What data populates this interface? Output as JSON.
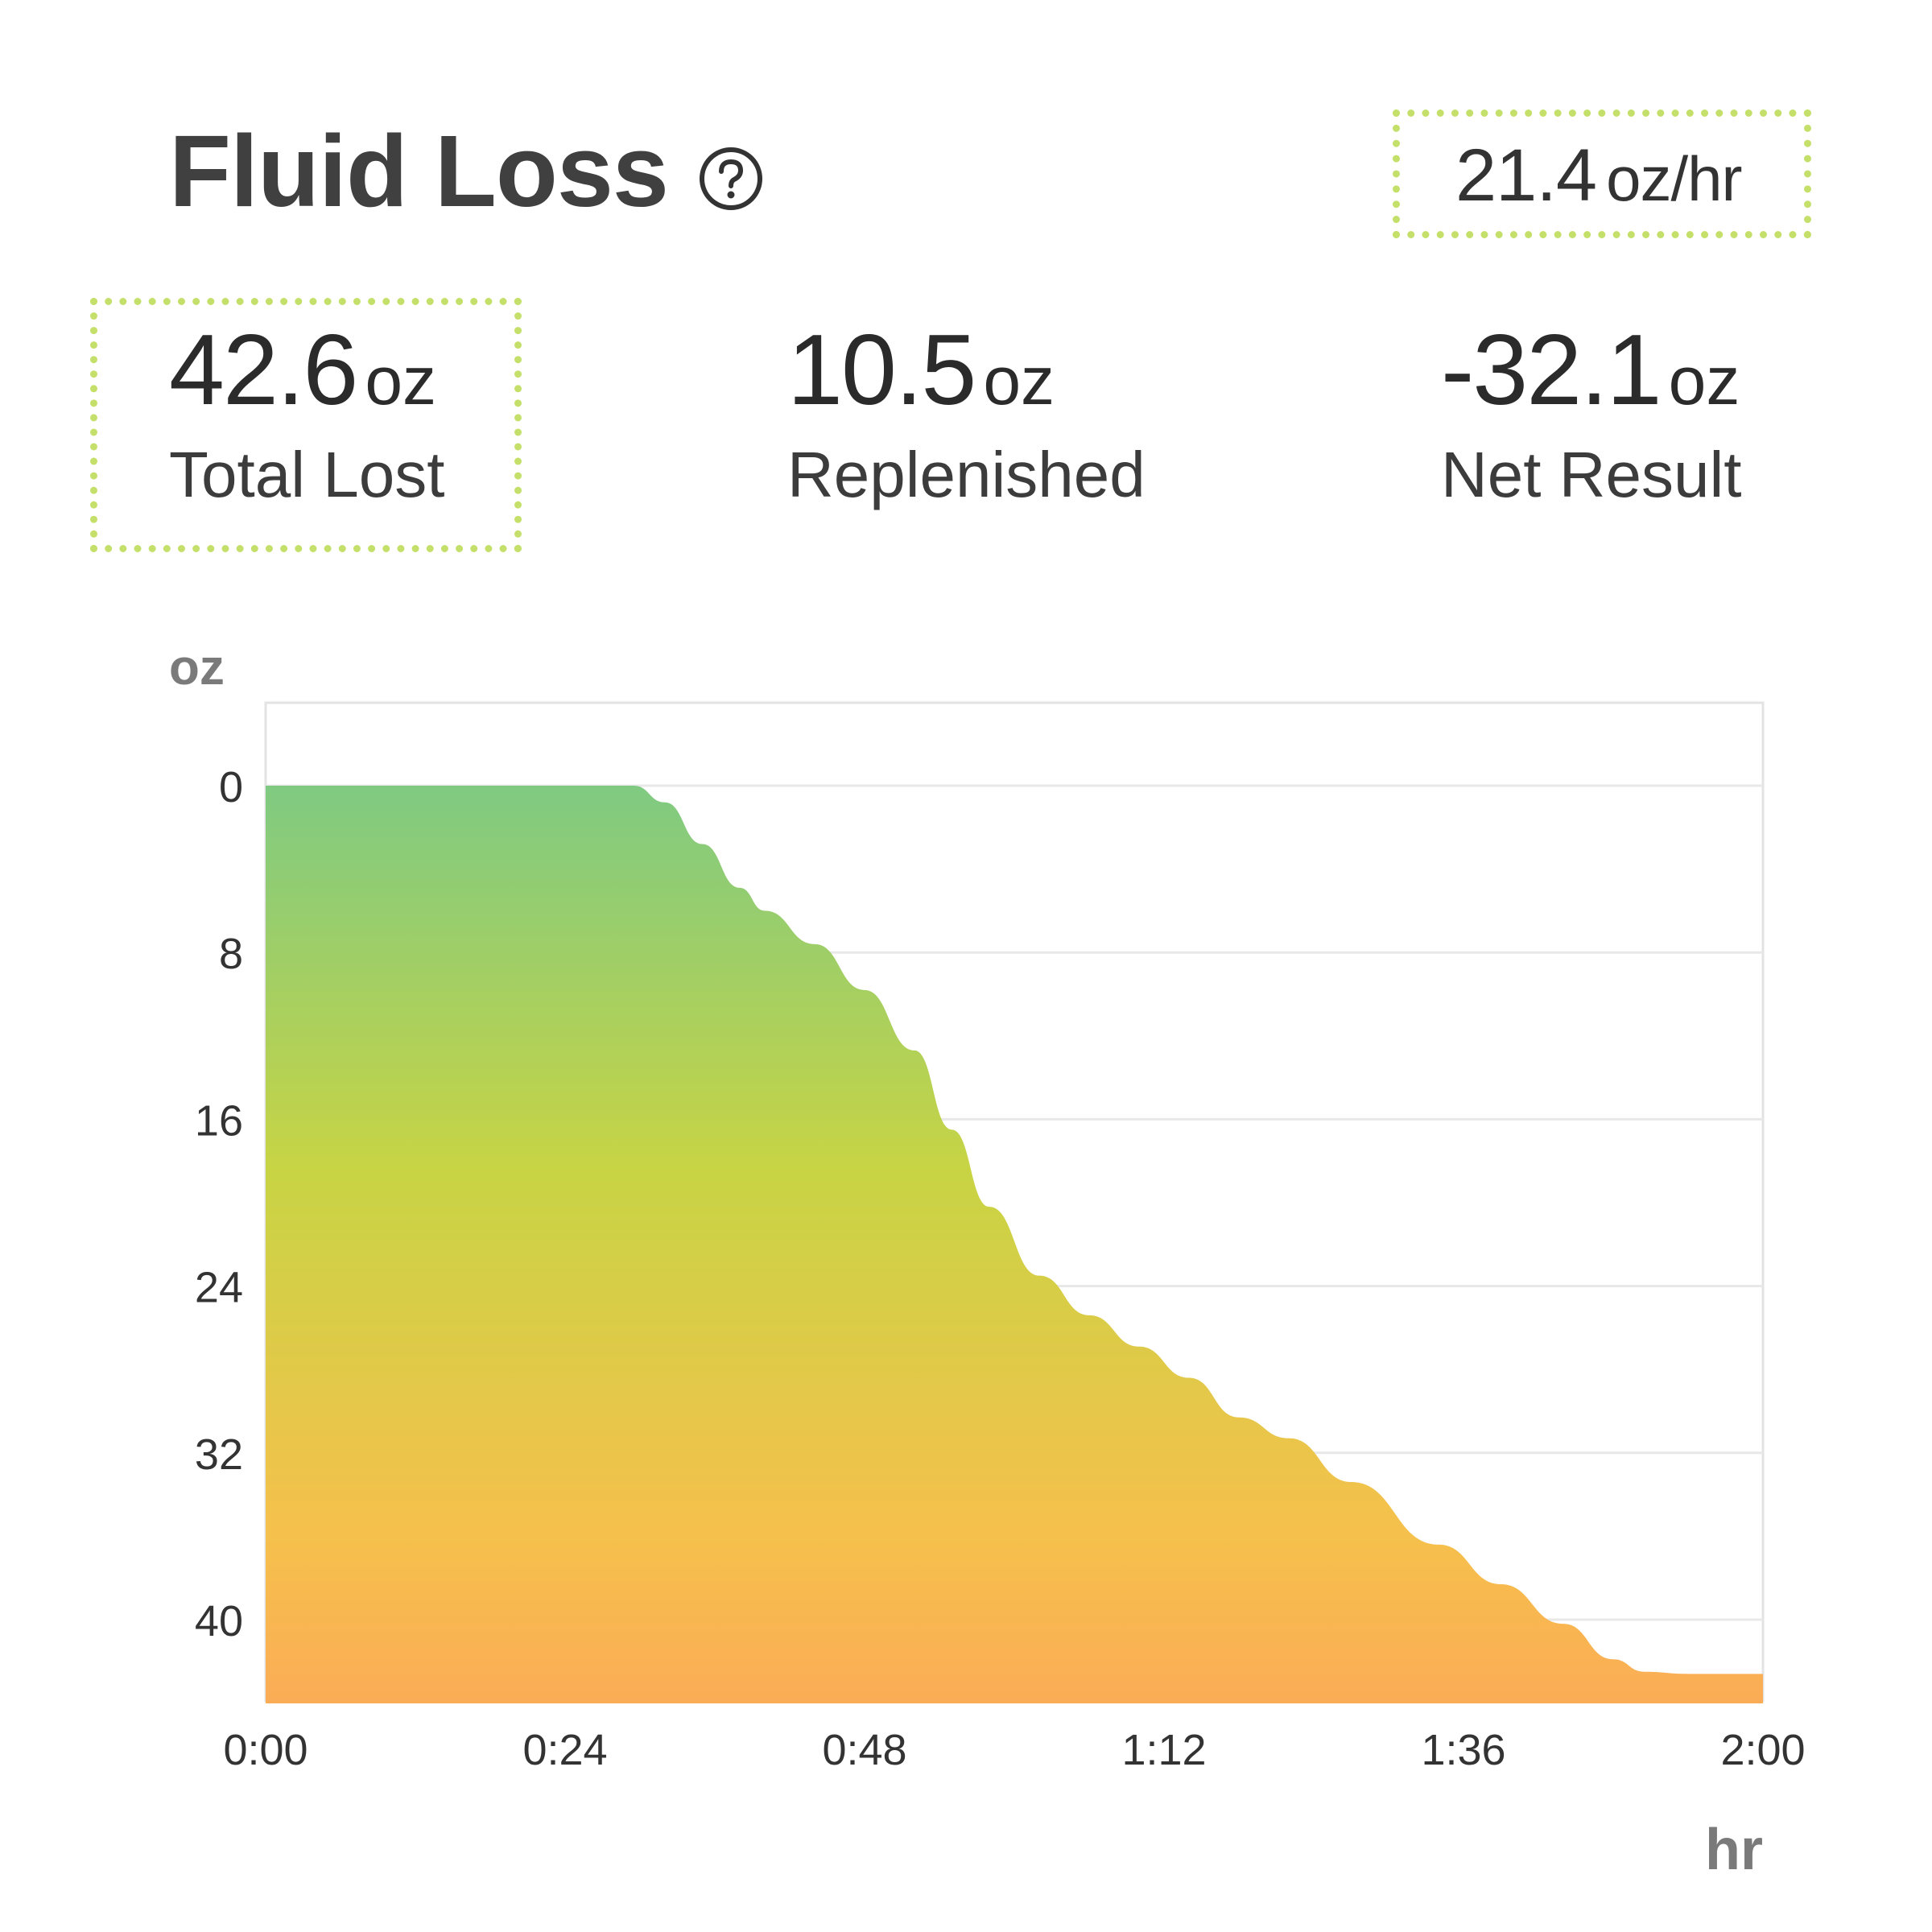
{
  "header": {
    "title": "Fluid Loss",
    "help_icon": "help-circle-icon",
    "rate_value": "21.4",
    "rate_unit": "oz/hr"
  },
  "stats": [
    {
      "value": "42.6",
      "unit": "oz",
      "label": "Total Lost"
    },
    {
      "value": "10.5",
      "unit": "oz",
      "label": "Replenished"
    },
    {
      "value": "-32.1",
      "unit": "oz",
      "label": "Net Result"
    }
  ],
  "colors": {
    "highlight_border": "#c5e06a",
    "gradient_top": "#7fca82",
    "gradient_mid": "#c8d444",
    "gradient_low": "#f6c04c",
    "gradient_bottom": "#fbac56"
  },
  "chart_data": {
    "type": "area",
    "ylabel": "oz",
    "xlabel": "hr",
    "y_inverted": true,
    "ylim": [
      0,
      44
    ],
    "xlim_minutes": [
      0,
      120
    ],
    "x_tick_labels": [
      "0:00",
      "0:24",
      "0:48",
      "1:12",
      "1:36",
      "2:00"
    ],
    "y_tick_labels": [
      "0",
      "8",
      "16",
      "24",
      "32",
      "40"
    ],
    "y_ticks": [
      0,
      8,
      16,
      24,
      32,
      40
    ],
    "grid": true,
    "x_minutes": [
      0,
      28,
      29.5,
      32,
      35,
      38,
      40,
      44,
      48,
      52,
      55,
      58,
      62,
      66,
      70,
      74,
      78,
      82,
      87,
      94,
      99,
      104,
      108,
      110.5,
      114,
      116.5,
      118,
      120
    ],
    "values": [
      0,
      0,
      0,
      0.8,
      2.8,
      4.9,
      6,
      7.6,
      9.8,
      12.7,
      16.5,
      20.2,
      23.5,
      25.4,
      26.9,
      28.4,
      30.3,
      31.3,
      33.4,
      36.4,
      38.3,
      40.2,
      41.9,
      42.5,
      42.6,
      42.6,
      42.6,
      42.6
    ]
  }
}
